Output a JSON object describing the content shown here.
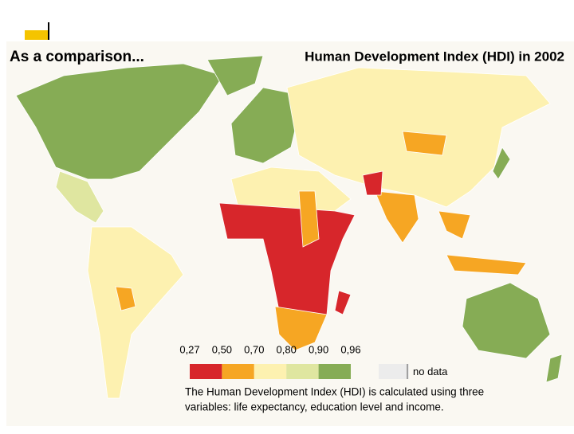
{
  "header": {
    "left_title": "As a comparison...",
    "right_title": "Human Development Index (HDI) in 2002"
  },
  "legend": {
    "ticks": [
      "0,27",
      "0,50",
      "0,70",
      "0,80",
      "0,90",
      "0,96"
    ],
    "colors": [
      "#d7262b",
      "#f6a623",
      "#fdf1b0",
      "#dfe6a0",
      "#86ac55"
    ],
    "no_data_label": "no data",
    "no_data_color": "#ececec"
  },
  "note": {
    "lines": [
      "The Human Development Index (HDI) is calculated using three",
      "variables: life expectancy, education level and income."
    ]
  }
}
